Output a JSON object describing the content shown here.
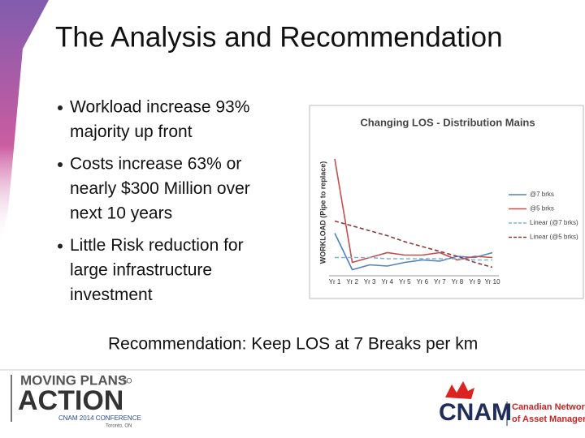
{
  "slide": {
    "title": "The Analysis and Recommendation",
    "bullets": [
      [
        "Workload increase 93%",
        "majority up front"
      ],
      [
        "Costs increase 63% or",
        "nearly $300 Million over",
        "next 10 years"
      ],
      [
        "Little Risk reduction for",
        "large infrastructure",
        "investment"
      ]
    ],
    "recommendation": "Recommendation:  Keep LOS at 7 Breaks per km",
    "logo_left": {
      "line1": "MOVING PLANS",
      "to": "TO",
      "line2": "ACTION",
      "line3": "CNAM 2014 CONFERENCE",
      "line4": "Toronto, ON"
    },
    "logo_right": {
      "name": "CNAM",
      "line1": "Canadian Network",
      "line2": "of Asset Managers"
    }
  },
  "chart_data": {
    "type": "line",
    "title": "Changing LOS - Distribution Mains",
    "y_label": "WORKLOAD (Pipe to replace)",
    "categories": [
      "Yr 1",
      "Yr 2",
      "Yr 3",
      "Yr 4",
      "Yr 5",
      "Yr 6",
      "Yr 7",
      "Yr 8",
      "Yr 9",
      "Yr 10"
    ],
    "ylim": [
      0,
      100
    ],
    "series": [
      {
        "name": "@7 brks",
        "color": "#4f81bd",
        "dash": false,
        "values": [
          35,
          5,
          9,
          8,
          11,
          13,
          12,
          16,
          15,
          19
        ]
      },
      {
        "name": "@5 brks",
        "color": "#c0504d",
        "dash": false,
        "values": [
          96,
          11,
          15,
          19,
          17,
          17,
          19,
          13,
          16,
          15
        ]
      },
      {
        "name": "Linear (@7 brks)",
        "color": "#7fb3d5",
        "dash": true,
        "values": [
          15,
          15,
          15,
          14,
          14,
          14,
          14,
          14,
          13,
          13
        ]
      },
      {
        "name": "Linear (@5 brks)",
        "color": "#8b3a3a",
        "dash": true,
        "values": [
          45,
          41,
          37,
          33,
          28,
          24,
          20,
          16,
          11,
          7
        ]
      }
    ]
  }
}
